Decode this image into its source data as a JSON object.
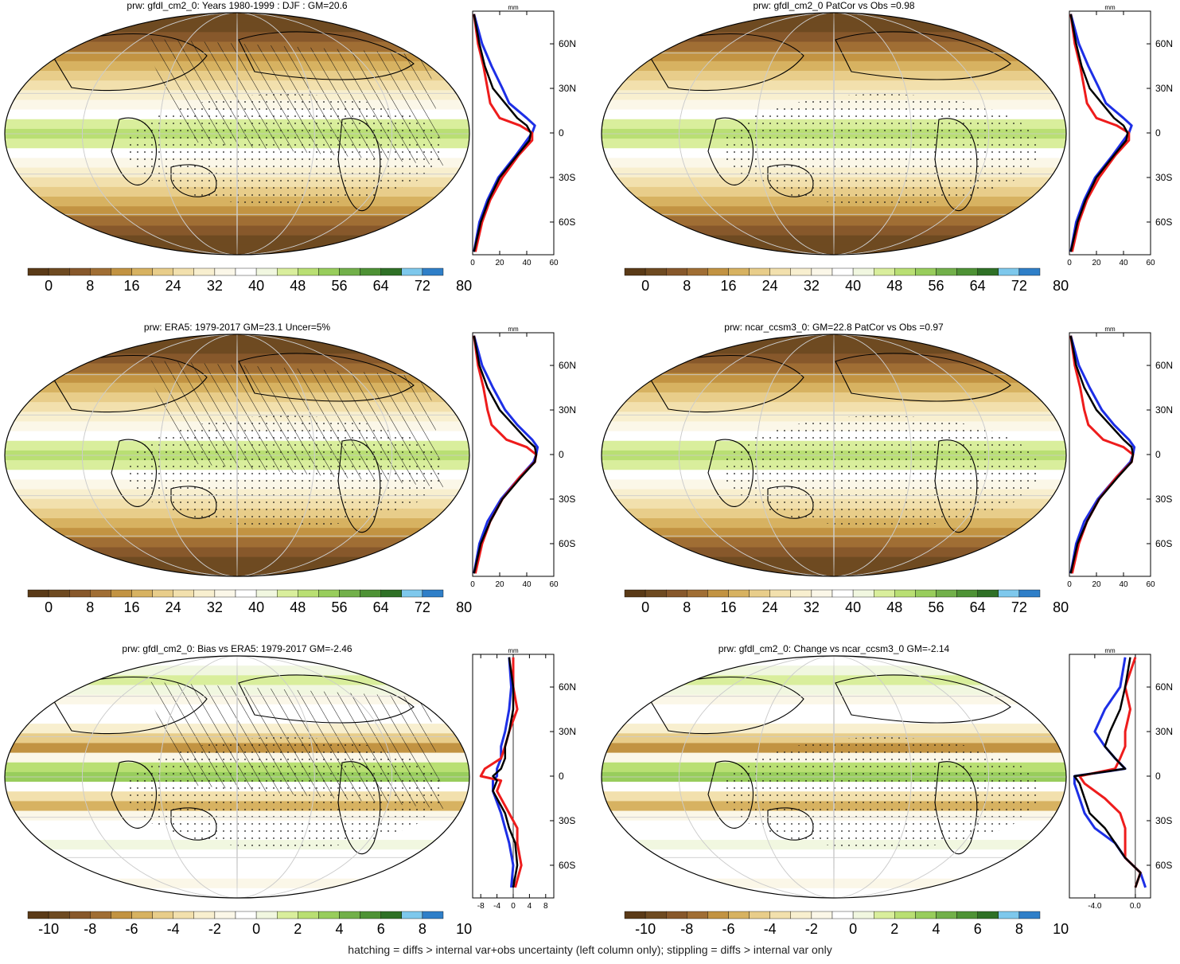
{
  "colors": {
    "precip_scale": [
      "#5a3a17",
      "#6e4a21",
      "#87582b",
      "#a06e34",
      "#c29342",
      "#d7b261",
      "#e8cd8a",
      "#f2e0ad",
      "#f8efcf",
      "#fbf7e8",
      "#ffffff",
      "#f1f7e0",
      "#d9ee9c",
      "#b9df73",
      "#98cd5c",
      "#72b04a",
      "#4e9235",
      "#2f7026",
      "#7ec8ec",
      "#2f7fc8"
    ],
    "diff_scale": [
      "#5a3a17",
      "#6e4a21",
      "#87582b",
      "#a06e34",
      "#c29342",
      "#d7b261",
      "#e8cd8a",
      "#f2e0ad",
      "#f8efcf",
      "#fbf7e8",
      "#ffffff",
      "#f1f7e0",
      "#d9ee9c",
      "#b9df73",
      "#98cd5c",
      "#72b04a",
      "#4e9235",
      "#2f7026",
      "#7ec8ec",
      "#2f7fc8"
    ],
    "line_model": "#000000",
    "line_obs_red": "#ee1c1c",
    "line_obs_blue": "#1d2fe6"
  },
  "footer_note": "hatching = diffs > internal var+obs uncertainty (left column only); stippling = diffs > internal var only",
  "chart_data": [
    {
      "type": "heatmap",
      "title": "prw: gfdl_cm2_0: Years 1980-1999 : DJF : GM=20.6",
      "colorbar_labels": [
        "0",
        "8",
        "16",
        "24",
        "32",
        "40",
        "48",
        "56",
        "64",
        "72",
        "80"
      ],
      "profile": {
        "unit": "mm",
        "xticks": [
          "0",
          "20",
          "40",
          "60"
        ],
        "xlim": [
          0,
          60
        ],
        "yticks": [
          "60N",
          "30N",
          "0",
          "30S",
          "60S"
        ],
        "ylim": [
          -82,
          82
        ],
        "lat": [
          -80,
          -60,
          -45,
          -30,
          -15,
          -5,
          0,
          5,
          10,
          20,
          30,
          45,
          60,
          80
        ],
        "series_model": [
          1,
          6,
          12,
          20,
          33,
          42,
          43,
          40,
          33,
          24,
          15,
          9,
          5,
          1
        ],
        "series_obs_red": [
          2,
          7,
          13,
          22,
          34,
          44,
          44,
          35,
          20,
          13,
          11,
          8,
          4,
          1
        ],
        "series_obs_blue": [
          1,
          5,
          11,
          19,
          32,
          40,
          44,
          46,
          40,
          27,
          22,
          14,
          7,
          1
        ]
      },
      "hatching": true
    },
    {
      "type": "heatmap",
      "title": "prw: gfdl_cm2_0 PatCor vs Obs =0.98",
      "colorbar_labels": [
        "0",
        "8",
        "16",
        "24",
        "32",
        "40",
        "48",
        "56",
        "64",
        "72",
        "80"
      ],
      "profile": {
        "unit": "mm",
        "xticks": [
          "0",
          "20",
          "40",
          "60"
        ],
        "xlim": [
          0,
          60
        ],
        "yticks": [
          "60N",
          "30N",
          "0",
          "30S",
          "60S"
        ],
        "ylim": [
          -82,
          82
        ],
        "lat": [
          -80,
          -60,
          -45,
          -30,
          -15,
          -5,
          0,
          5,
          10,
          20,
          30,
          45,
          60,
          80
        ],
        "series_model": [
          1,
          6,
          12,
          20,
          33,
          42,
          43,
          40,
          33,
          24,
          15,
          9,
          5,
          1
        ],
        "series_obs_red": [
          2,
          7,
          13,
          22,
          34,
          44,
          44,
          35,
          20,
          13,
          11,
          8,
          4,
          1
        ],
        "series_obs_blue": [
          1,
          5,
          11,
          19,
          32,
          40,
          44,
          46,
          40,
          27,
          22,
          14,
          7,
          1
        ]
      },
      "hatching": false
    },
    {
      "type": "heatmap",
      "title": "prw: ERA5: 1979-2017 GM=23.1 Uncer=5%",
      "colorbar_labels": [
        "0",
        "8",
        "16",
        "24",
        "32",
        "40",
        "48",
        "56",
        "64",
        "72",
        "80"
      ],
      "profile": {
        "unit": "mm",
        "xticks": [
          "0",
          "20",
          "40",
          "60"
        ],
        "xlim": [
          0,
          60
        ],
        "yticks": [
          "60N",
          "30N",
          "0",
          "30S",
          "60S"
        ],
        "ylim": [
          -82,
          82
        ],
        "lat": [
          -80,
          -60,
          -45,
          -30,
          -15,
          -5,
          0,
          5,
          10,
          20,
          30,
          45,
          60,
          80
        ],
        "series_model": [
          1,
          6,
          13,
          22,
          36,
          46,
          47,
          46,
          40,
          30,
          20,
          11,
          5,
          1
        ],
        "series_obs_red": [
          2,
          7,
          13,
          22,
          35,
          46,
          47,
          40,
          25,
          14,
          11,
          8,
          4,
          1
        ],
        "series_obs_blue": [
          1,
          5,
          11,
          21,
          35,
          45,
          47,
          48,
          44,
          33,
          24,
          15,
          7,
          1
        ]
      },
      "hatching": true
    },
    {
      "type": "heatmap",
      "title": "prw: ncar_ccsm3_0: GM=22.8 PatCor vs Obs =0.97",
      "colorbar_labels": [
        "0",
        "8",
        "16",
        "24",
        "32",
        "40",
        "48",
        "56",
        "64",
        "72",
        "80"
      ],
      "profile": {
        "unit": "mm",
        "xticks": [
          "0",
          "20",
          "40",
          "60"
        ],
        "xlim": [
          0,
          60
        ],
        "yticks": [
          "60N",
          "30N",
          "0",
          "30S",
          "60S"
        ],
        "ylim": [
          -82,
          82
        ],
        "lat": [
          -80,
          -60,
          -45,
          -30,
          -15,
          -5,
          0,
          5,
          10,
          20,
          30,
          45,
          60,
          80
        ],
        "series_model": [
          1,
          6,
          13,
          22,
          36,
          46,
          47,
          46,
          40,
          30,
          20,
          11,
          5,
          1
        ],
        "series_obs_red": [
          2,
          7,
          13,
          22,
          35,
          46,
          47,
          40,
          25,
          14,
          11,
          8,
          4,
          1
        ],
        "series_obs_blue": [
          1,
          5,
          11,
          21,
          35,
          45,
          47,
          48,
          44,
          33,
          24,
          15,
          7,
          1
        ]
      },
      "hatching": false
    },
    {
      "type": "heatmap",
      "title": "prw: gfdl_cm2_0: Bias vs ERA5: 1979-2017 GM=-2.46",
      "colorbar_labels": [
        "-10",
        "-8",
        "-6",
        "-4",
        "-2",
        "0",
        "2",
        "4",
        "6",
        "8",
        "10"
      ],
      "profile": {
        "unit": "mm",
        "xticks": [
          "-8",
          "-4",
          "0",
          "4",
          "8"
        ],
        "xlim": [
          -10,
          10
        ],
        "yticks": [
          "60N",
          "30N",
          "0",
          "30S",
          "60S"
        ],
        "ylim": [
          -82,
          82
        ],
        "lat": [
          -75,
          -60,
          -45,
          -35,
          -25,
          -10,
          -3,
          0,
          5,
          12,
          20,
          30,
          45,
          60,
          80
        ],
        "series_model": [
          0,
          1,
          0.5,
          -1,
          -2,
          -5,
          -4,
          -5,
          -3,
          -2,
          -2,
          -1,
          0,
          0,
          -1
        ],
        "series_obs_red": [
          0.5,
          2,
          1,
          1,
          -1,
          -4,
          -3,
          -8,
          -7,
          -3,
          -2,
          -1,
          1,
          0,
          0
        ],
        "series_obs_blue": [
          -0.5,
          0,
          -1,
          -2,
          -3,
          -5,
          -5,
          -4,
          -4,
          -3,
          -3,
          -2,
          -1,
          -0.5,
          -1
        ]
      },
      "hatching": true
    },
    {
      "type": "heatmap",
      "title": "prw: gfdl_cm2_0: Change vs ncar_ccsm3_0 GM=-2.14",
      "colorbar_labels": [
        "-10",
        "-8",
        "-6",
        "-4",
        "-2",
        "0",
        "2",
        "4",
        "6",
        "8",
        "10"
      ],
      "profile": {
        "unit": "mm",
        "xticks": [
          "-4.0",
          "0.0"
        ],
        "xlim": [
          -6.5,
          1.5
        ],
        "yticks": [
          "60N",
          "30N",
          "0",
          "30S",
          "60S"
        ],
        "ylim": [
          -82,
          82
        ],
        "lat": [
          -75,
          -65,
          -55,
          -45,
          -35,
          -25,
          -15,
          -5,
          0,
          5,
          12,
          20,
          30,
          45,
          60,
          80
        ],
        "series_model": [
          0,
          0.5,
          -1,
          -2,
          -3,
          -4.5,
          -5,
          -5.5,
          -6,
          -1,
          -2,
          -3,
          -2.5,
          -1.5,
          -1,
          -0.5
        ],
        "series_obs_red": [
          0,
          0.5,
          -1,
          -1,
          -1,
          -1.5,
          -3,
          -5,
          -5.5,
          -2,
          -1.5,
          -1,
          -1,
          -0.5,
          -1,
          0
        ],
        "series_obs_blue": [
          1,
          0.5,
          -1,
          -2,
          -4,
          -5,
          -5.5,
          -6,
          -6,
          -1,
          -2,
          -3,
          -4,
          -3,
          -1.5,
          -1
        ]
      },
      "hatching": false
    }
  ]
}
